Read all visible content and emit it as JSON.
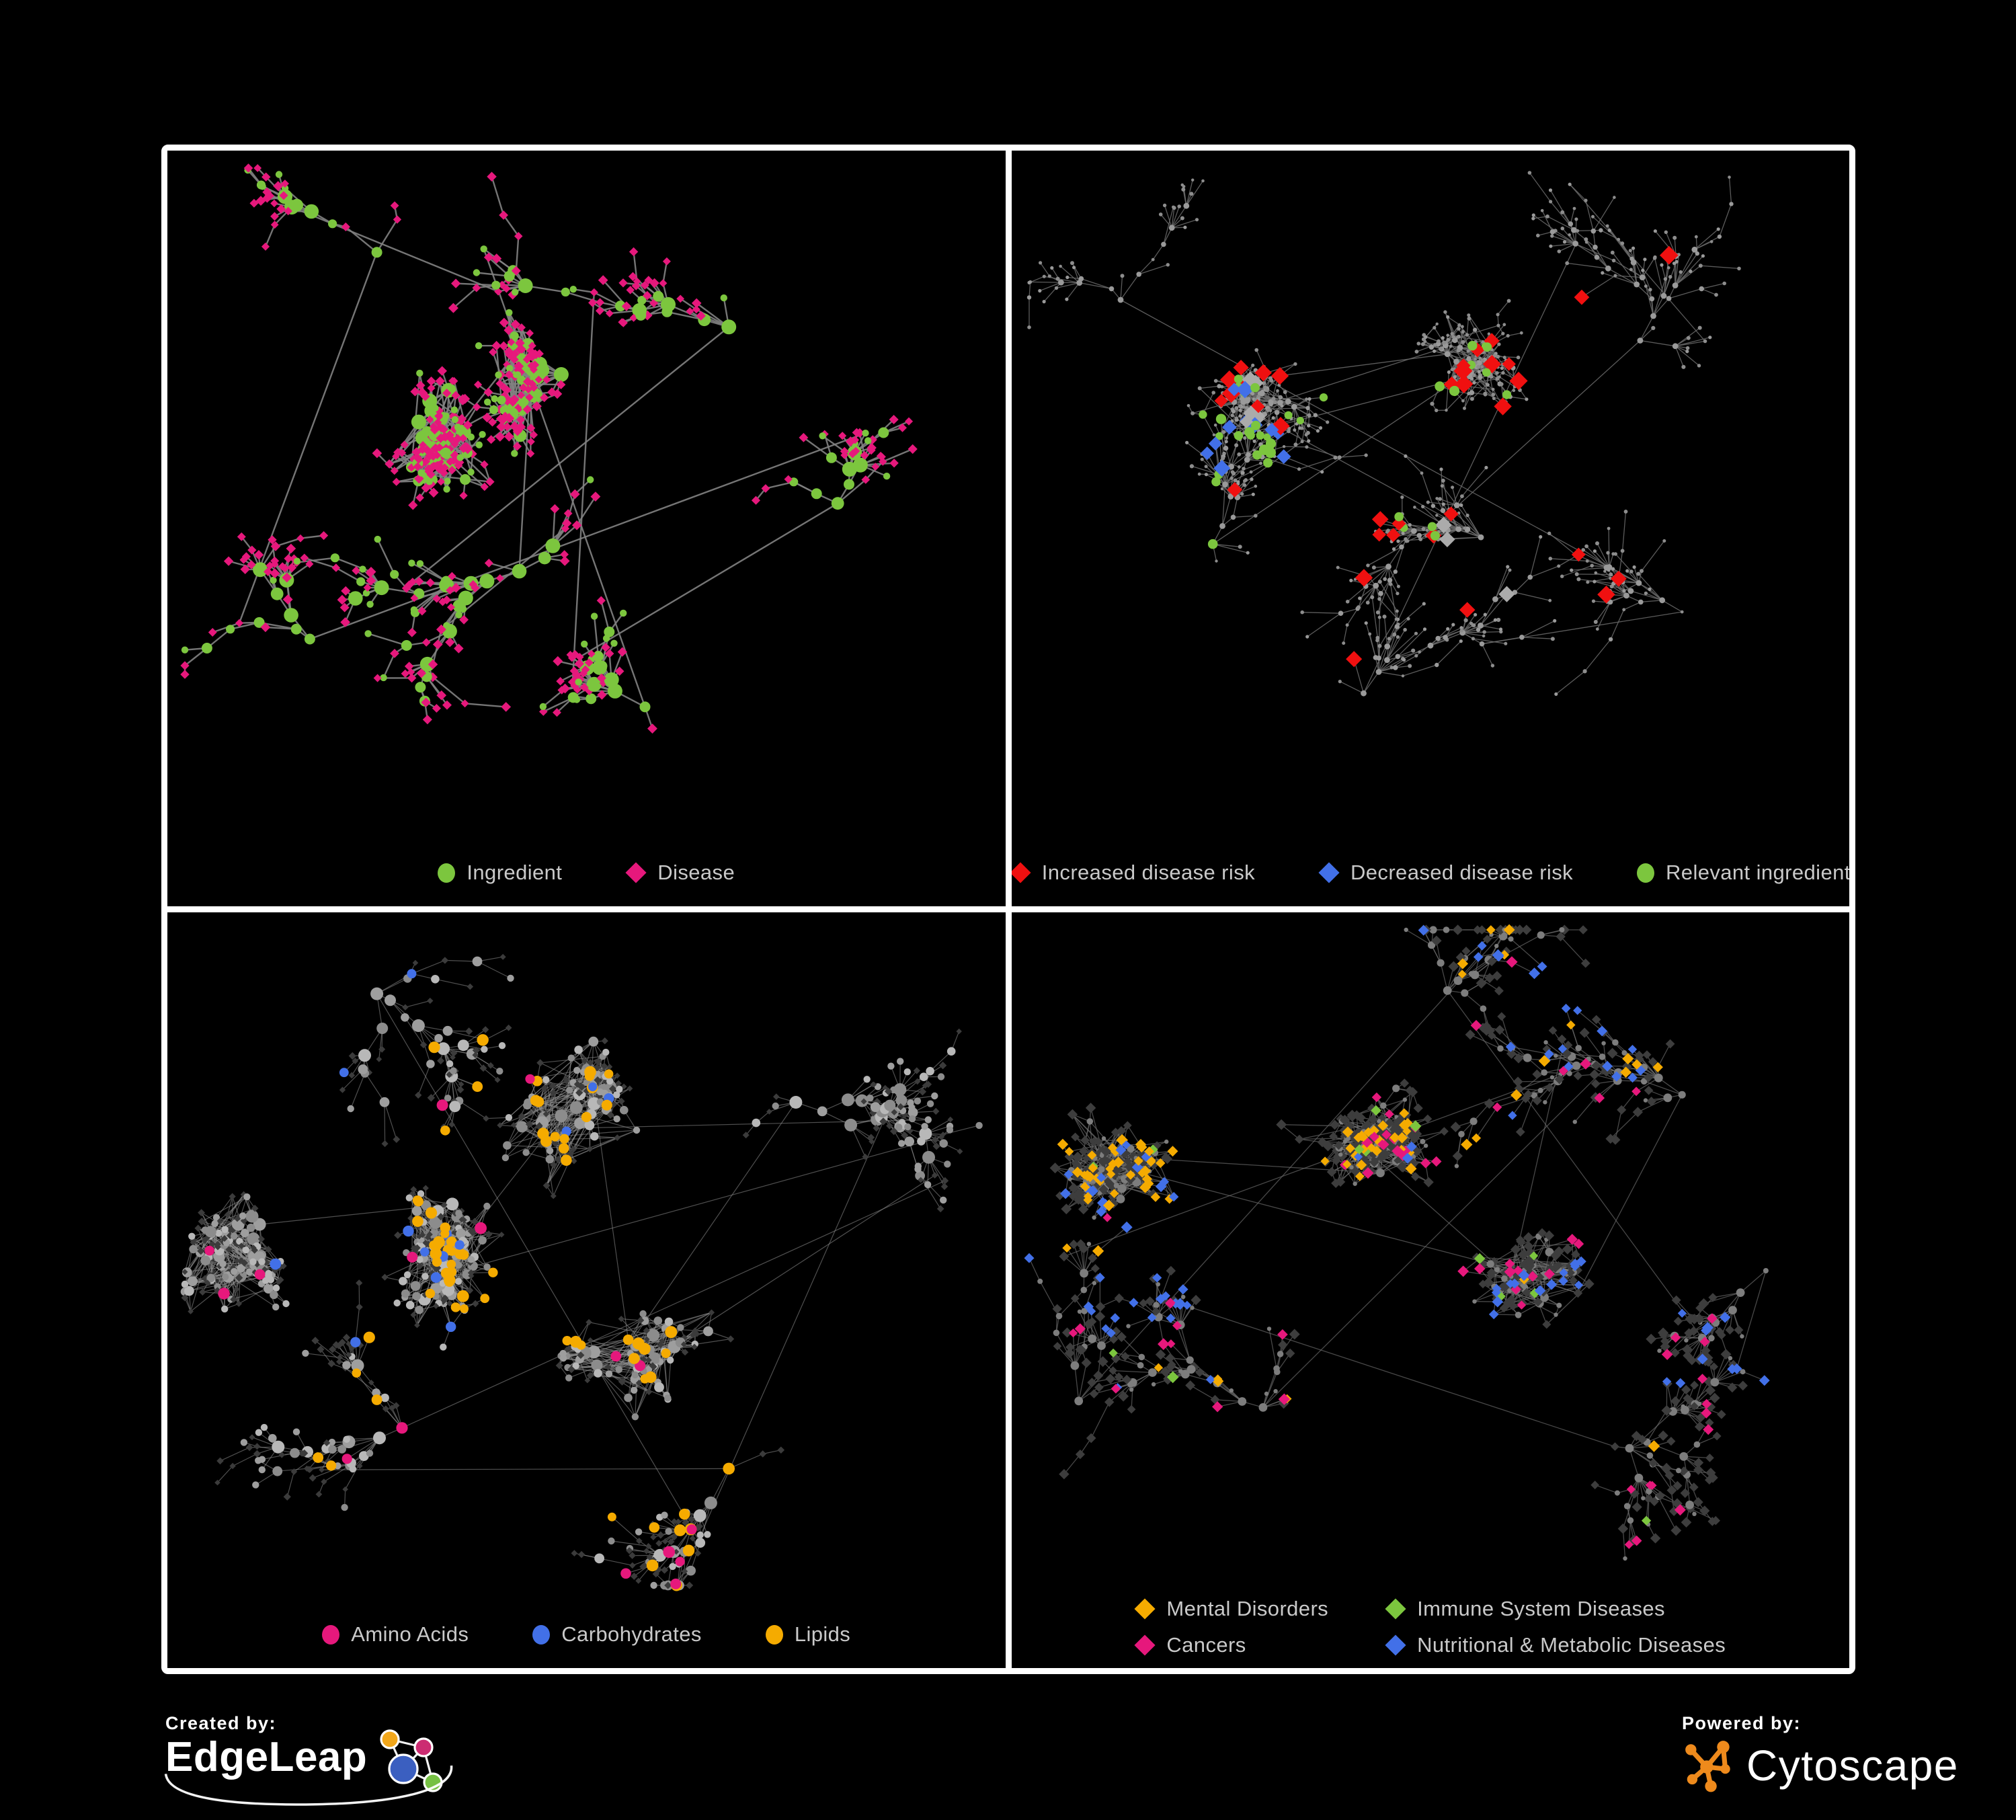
{
  "background": "#000000",
  "frame_color": "#ffffff",
  "legend_text_color": "#c9c9c9",
  "panels": [
    {
      "id": "ingredient-disease-network",
      "position": "top-left",
      "legend": [
        {
          "label": "Ingredient",
          "shape": "circle",
          "color": "#7cc63e"
        },
        {
          "label": "Disease",
          "shape": "diamond",
          "color": "#e6187c"
        }
      ],
      "network": {
        "seed": 7,
        "nodes": 620,
        "fan_prob": 0.09,
        "circle_leaf_prob": 0.15,
        "dense_extra": 0.5,
        "edge_color": "#828282",
        "edge_width": 2.4,
        "edge_opacity": 0.9,
        "legend_reserve": 115,
        "clusters": [
          [
            0.3,
            0.4,
            0.26,
            1
          ],
          [
            0.47,
            0.33,
            0.2,
            1
          ],
          [
            0.42,
            0.62,
            0.16,
            0
          ],
          [
            0.67,
            0.26,
            0.1,
            0
          ],
          [
            0.57,
            0.82,
            0.09,
            0
          ],
          [
            0.8,
            0.52,
            0.07,
            0
          ],
          [
            0.17,
            0.72,
            0.07,
            0
          ],
          [
            0.25,
            0.15,
            0.05,
            0
          ]
        ],
        "base": {
          "c": {
            "shape": "circle",
            "colors": [
              "#7cc63e"
            ],
            "r0": 5.2,
            "rk": 1.4,
            "rmax": 11
          },
          "d": {
            "shape": "diamond",
            "colors": [
              "#e6187c"
            ],
            "r0": 4.6,
            "rvar": 1.4
          }
        },
        "highlights": []
      }
    },
    {
      "id": "disease-risk-network",
      "position": "top-right",
      "legend": [
        {
          "label": "Increased disease risk",
          "shape": "diamond",
          "color": "#f01010"
        },
        {
          "label": "Decreased disease risk",
          "shape": "diamond",
          "color": "#4270e8"
        },
        {
          "label": "Relevant ingredient",
          "shape": "circle",
          "color": "#7cc63e"
        }
      ],
      "network": {
        "seed": 13,
        "nodes": 860,
        "fan_prob": 0.13,
        "circle_leaf_prob": 0.3,
        "dense_extra": 0.25,
        "edge_color": "#6b6b6b",
        "edge_width": 1.3,
        "edge_opacity": 0.85,
        "legend_reserve": 115,
        "clusters": [
          [
            0.33,
            0.37,
            0.2,
            1
          ],
          [
            0.52,
            0.3,
            0.22,
            1
          ],
          [
            0.24,
            0.58,
            0.12,
            0
          ],
          [
            0.56,
            0.57,
            0.12,
            0
          ],
          [
            0.75,
            0.28,
            0.12,
            0
          ],
          [
            0.42,
            0.8,
            0.1,
            0
          ],
          [
            0.8,
            0.68,
            0.07,
            0
          ],
          [
            0.13,
            0.22,
            0.05,
            0
          ]
        ],
        "base": {
          "c": {
            "shape": "circle",
            "colors": [
              "#9a9a9a"
            ],
            "r0": 2.6,
            "rk": 0.6,
            "rmax": 4.4
          },
          "d": {
            "shape": "circle",
            "colors": [
              "#8d8d8d"
            ],
            "r0": 2.2,
            "rvar": 0.9
          }
        },
        "highlights": [
          {
            "sem": "d",
            "shape": "diamond",
            "color": "#f01010",
            "count": 34,
            "r": [
              8.5,
              12
            ],
            "zones": [
              [
                0.4,
                0.38,
                0.14
              ],
              [
                0.3,
                0.32,
                0.08
              ],
              [
                0.52,
                0.5,
                0.1
              ],
              [
                0.63,
                0.4,
                0.18
              ],
              [
                0.6,
                0.72,
                0.1
              ]
            ]
          },
          {
            "sem": "d",
            "shape": "diamond",
            "color": "#4270e8",
            "count": 11,
            "r": [
              8,
              11
            ],
            "zones": [
              [
                0.26,
                0.42,
                0.06
              ],
              [
                0.89,
                0.17,
                0.045
              ]
            ]
          },
          {
            "sem": "d",
            "shape": "diamond",
            "color": "#ababab",
            "count": 9,
            "r": [
              8,
              11
            ],
            "zones": [
              [
                0.33,
                0.42,
                0.12
              ],
              [
                0.52,
                0.48,
                0.12
              ]
            ]
          },
          {
            "sem": "c",
            "shape": "circle",
            "color": "#7cc63e",
            "count": 36,
            "r": [
              5.5,
              8
            ],
            "zones": [
              [
                0.34,
                0.34,
                0.12
              ],
              [
                0.5,
                0.4,
                0.13
              ],
              [
                0.14,
                0.4,
                0.15
              ],
              [
                0.57,
                0.3,
                0.1
              ]
            ]
          }
        ]
      }
    },
    {
      "id": "ingredient-classes-network",
      "position": "bottom-left",
      "legend": [
        {
          "label": "Amino Acids",
          "shape": "circle",
          "color": "#e6187c"
        },
        {
          "label": "Carbohydrates",
          "shape": "circle",
          "color": "#4270e8"
        },
        {
          "label": "Lipids",
          "shape": "circle",
          "color": "#f5ab00"
        }
      ],
      "network": {
        "seed": 21,
        "nodes": 960,
        "fan_prob": 0.08,
        "circle_leaf_prob": 0.45,
        "dense_extra": 1.3,
        "edge_color": "#8f8f8f",
        "edge_width": 1.2,
        "edge_opacity": 0.55,
        "legend_reserve": 115,
        "clusters": [
          [
            0.11,
            0.46,
            0.16,
            1
          ],
          [
            0.34,
            0.43,
            0.22,
            1
          ],
          [
            0.47,
            0.3,
            0.14,
            1
          ],
          [
            0.55,
            0.63,
            0.11,
            1
          ],
          [
            0.75,
            0.28,
            0.11,
            0
          ],
          [
            0.28,
            0.76,
            0.09,
            0
          ],
          [
            0.67,
            0.82,
            0.09,
            0
          ],
          [
            0.25,
            0.12,
            0.08,
            0
          ]
        ],
        "base": {
          "c": {
            "shape": "circle",
            "colors": [
              "#9e9e9e",
              "#b8b8b8",
              "#8c8c8c"
            ],
            "r0": 5.2,
            "rk": 1.1,
            "rmax": 9.5
          },
          "d": {
            "shape": "diamond",
            "colors": [
              "#3b3b3b"
            ],
            "r0": 3.4,
            "rvar": 1.2
          }
        },
        "highlights": [
          {
            "sem": "c",
            "shape": "circle",
            "color": "#f5ab00",
            "count": 72,
            "r": [
              6.5,
              9
            ],
            "zones": [
              [
                0.46,
                0.3,
                0.06
              ],
              [
                0.4,
                0.46,
                0.09
              ],
              [
                0.55,
                0.6,
                0.05
              ],
              [
                0.47,
                0.72,
                0.18
              ],
              [
                0.3,
                0.33,
                0.1
              ]
            ]
          },
          {
            "sem": "c",
            "shape": "circle",
            "color": "#4270e8",
            "count": 14,
            "r": [
              6.5,
              8.5
            ],
            "zones": [
              [
                0.47,
                0.32,
                0.05
              ],
              [
                0.74,
                0.6,
                0.05
              ],
              [
                0.15,
                0.25,
                0.2
              ]
            ]
          },
          {
            "sem": "c",
            "shape": "circle",
            "color": "#e6187c",
            "count": 16,
            "r": [
              7,
              9
            ],
            "zones": [
              [
                0.07,
                0.52,
                0.2
              ],
              [
                0.33,
                0.08,
                0.2
              ],
              [
                0.52,
                0.78,
                0.25
              ],
              [
                0.93,
                0.25,
                0.12
              ],
              [
                0.12,
                0.85,
                0.2
              ]
            ]
          }
        ]
      }
    },
    {
      "id": "disease-classes-network",
      "position": "bottom-right",
      "legend": [
        {
          "label": "Mental Disorders",
          "shape": "diamond",
          "color": "#f5ab00"
        },
        {
          "label": "Immune System Diseases",
          "shape": "diamond",
          "color": "#7cc63e"
        },
        {
          "label": "Cancers",
          "shape": "diamond",
          "color": "#e6187c"
        },
        {
          "label": "Nutritional & Metabolic Diseases",
          "shape": "diamond",
          "color": "#4270e8"
        }
      ],
      "network": {
        "seed": 42,
        "nodes": 1040,
        "fan_prob": 0.1,
        "circle_leaf_prob": 0.12,
        "dense_extra": 0.8,
        "edge_color": "#6f6f6f",
        "edge_width": 1.3,
        "edge_opacity": 0.65,
        "legend_reserve": 155,
        "clusters": [
          [
            0.13,
            0.44,
            0.19,
            1
          ],
          [
            0.44,
            0.4,
            0.23,
            1
          ],
          [
            0.63,
            0.6,
            0.12,
            1
          ],
          [
            0.8,
            0.28,
            0.11,
            0
          ],
          [
            0.3,
            0.76,
            0.09,
            0
          ],
          [
            0.72,
            0.82,
            0.1,
            0
          ],
          [
            0.9,
            0.55,
            0.05,
            0
          ],
          [
            0.52,
            0.12,
            0.06,
            0
          ],
          [
            0.08,
            0.75,
            0.05,
            0
          ]
        ],
        "base": {
          "c": {
            "shape": "circle",
            "colors": [
              "#7d7d7d"
            ],
            "r0": 3.2,
            "rk": 0.8,
            "rmax": 6.4
          },
          "d": {
            "shape": "diamond",
            "colors": [
              "#3d3d3d"
            ],
            "r0": 5.0,
            "rvar": 1.4
          }
        },
        "highlights": [
          {
            "sem": "d",
            "shape": "diamond",
            "color": "#f5ab00",
            "count": 88,
            "r": [
              5.5,
              7.5
            ],
            "zones": [
              [
                0.12,
                0.43,
                0.065
              ],
              [
                0.22,
                0.33,
                0.09
              ],
              [
                0.35,
                0.15,
                0.2
              ],
              [
                0.3,
                0.88,
                0.15
              ]
            ]
          },
          {
            "sem": "d",
            "shape": "diamond",
            "color": "#e6187c",
            "count": 60,
            "r": [
              5.5,
              7.5
            ],
            "zones": [
              [
                0.46,
                0.52,
                0.09
              ],
              [
                0.58,
                0.33,
                0.14
              ],
              [
                0.93,
                0.2,
                0.08
              ],
              [
                0.3,
                0.83,
                0.2
              ],
              [
                0.7,
                0.9,
                0.15
              ]
            ]
          },
          {
            "sem": "d",
            "shape": "diamond",
            "color": "#4270e8",
            "count": 85,
            "r": [
              5.5,
              7.5
            ],
            "zones": [
              [
                0.63,
                0.63,
                0.08
              ],
              [
                0.8,
                0.3,
                0.1
              ],
              [
                0.72,
                0.12,
                0.12
              ],
              [
                0.88,
                0.6,
                0.12
              ],
              [
                0.45,
                0.72,
                0.15
              ],
              [
                0.22,
                0.6,
                0.15
              ],
              [
                0.63,
                0.05,
                0.1
              ]
            ]
          },
          {
            "sem": "d",
            "shape": "diamond",
            "color": "#7cc63e",
            "count": 13,
            "r": [
              5.5,
              7.5
            ],
            "zones": [
              [
                0.5,
                0.5,
                0.55
              ]
            ]
          }
        ]
      }
    }
  ],
  "footer": {
    "created_by": {
      "label": "Created by:",
      "brand": "EdgeLeap",
      "logo_colors": [
        "#f2a71b",
        "#cc2c72",
        "#3b5fc0",
        "#76c043"
      ]
    },
    "powered_by": {
      "label": "Powered by:",
      "brand": "Cytoscape",
      "logo_color": "#ee8a1c"
    }
  }
}
